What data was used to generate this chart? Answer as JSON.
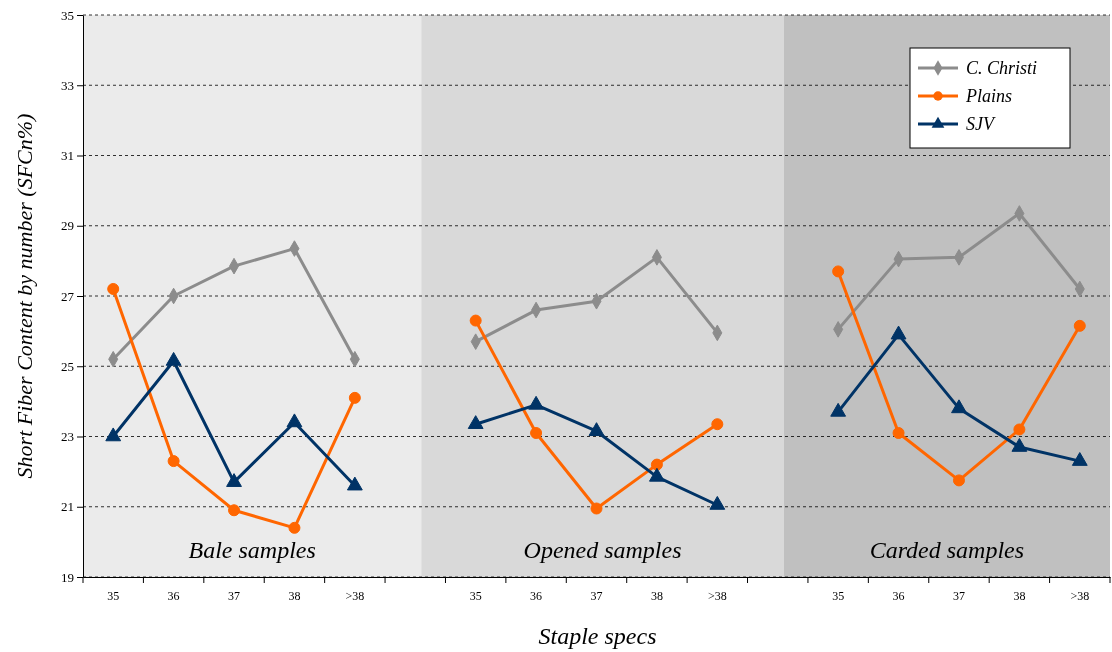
{
  "chart_data": {
    "type": "line",
    "xlabel": "Staple specs",
    "ylabel": "Short Fiber Content by number (SFCn%)",
    "categories": [
      "35",
      "36",
      "37",
      "38",
      ">38",
      null,
      "35",
      "36",
      "37",
      "38",
      ">38",
      null,
      "35",
      "36",
      "37",
      "38",
      ">38"
    ],
    "series": [
      {
        "name": "C. Christi",
        "color": "#8c8c8c",
        "marker": "diamond",
        "values": [
          25.2,
          27.0,
          27.85,
          28.35,
          25.2,
          null,
          25.7,
          26.6,
          26.85,
          28.1,
          25.95,
          null,
          26.05,
          28.05,
          28.1,
          29.35,
          27.2
        ]
      },
      {
        "name": "Plains",
        "color": "#ff6600",
        "marker": "circle",
        "values": [
          27.2,
          22.3,
          20.9,
          20.4,
          24.1,
          null,
          26.3,
          23.1,
          20.95,
          22.2,
          23.35,
          null,
          27.7,
          23.1,
          21.75,
          23.2,
          26.15
        ]
      },
      {
        "name": "SJV",
        "color": "#003366",
        "marker": "triangle",
        "values": [
          23.0,
          25.15,
          21.7,
          23.4,
          21.6,
          null,
          23.35,
          23.9,
          23.15,
          21.85,
          21.05,
          null,
          23.7,
          25.9,
          23.8,
          22.7,
          22.3
        ]
      }
    ],
    "ylim": [
      19,
      35
    ],
    "yticks": [
      19,
      21,
      23,
      25,
      27,
      29,
      31,
      33,
      35
    ],
    "grid": "y",
    "legend": "top right",
    "annotations": [
      "Bale samples",
      "Opened samples",
      "Carded samples"
    ]
  }
}
